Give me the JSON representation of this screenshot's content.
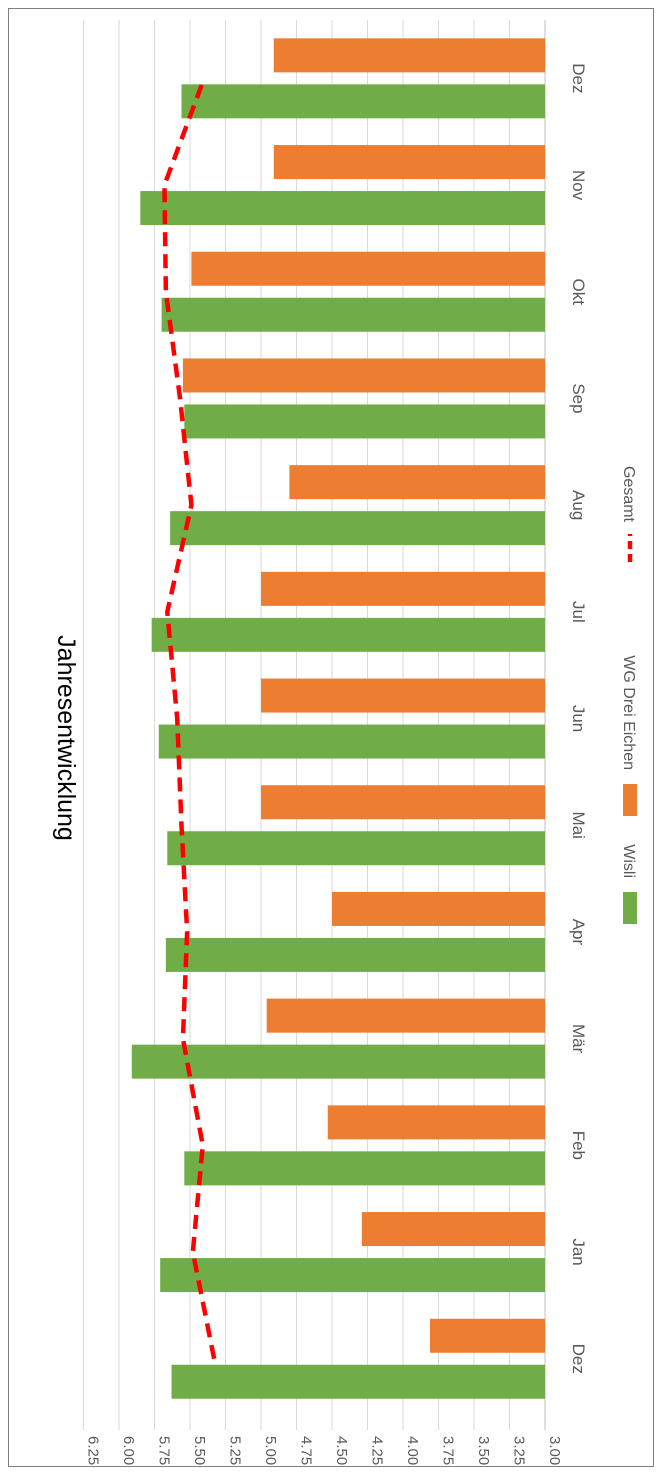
{
  "chart_data": {
    "type": "bar",
    "title": "Jahresentwicklung",
    "categories": [
      "Dez",
      "Jan",
      "Feb",
      "Mär",
      "Apr",
      "Mai",
      "Jun",
      "Jul",
      "Aug",
      "Sep",
      "Okt",
      "Nov",
      "Dez"
    ],
    "series": [
      {
        "name": "Wisli",
        "type": "bar",
        "color": "#70ad47",
        "values": [
          5.63,
          5.71,
          5.54,
          5.91,
          5.67,
          5.66,
          5.72,
          5.77,
          5.64,
          5.54,
          5.7,
          5.85,
          5.56
        ]
      },
      {
        "name": "WG Drei Eichen",
        "type": "bar",
        "color": "#ed7d31",
        "values": [
          3.81,
          4.29,
          4.53,
          4.96,
          4.5,
          5.0,
          5.0,
          5.0,
          4.8,
          5.55,
          5.49,
          4.91,
          4.91
        ]
      },
      {
        "name": "Gesamt",
        "type": "line",
        "style": "dashed",
        "color": "#ff0000",
        "values": [
          5.33,
          5.48,
          5.41,
          5.55,
          5.52,
          5.56,
          5.59,
          5.66,
          5.49,
          5.57,
          5.67,
          5.68,
          5.4
        ]
      }
    ],
    "yticks": [
      "3.00",
      "3.25",
      "3.50",
      "3.75",
      "4.00",
      "4.25",
      "4.50",
      "4.75",
      "5.00",
      "5.25",
      "5.50",
      "5.75",
      "6.00",
      "6.25"
    ],
    "ylim": [
      3.0,
      6.25
    ],
    "grid": true,
    "legend_position": "bottom",
    "orientation": "rotated 90° clockwise"
  }
}
